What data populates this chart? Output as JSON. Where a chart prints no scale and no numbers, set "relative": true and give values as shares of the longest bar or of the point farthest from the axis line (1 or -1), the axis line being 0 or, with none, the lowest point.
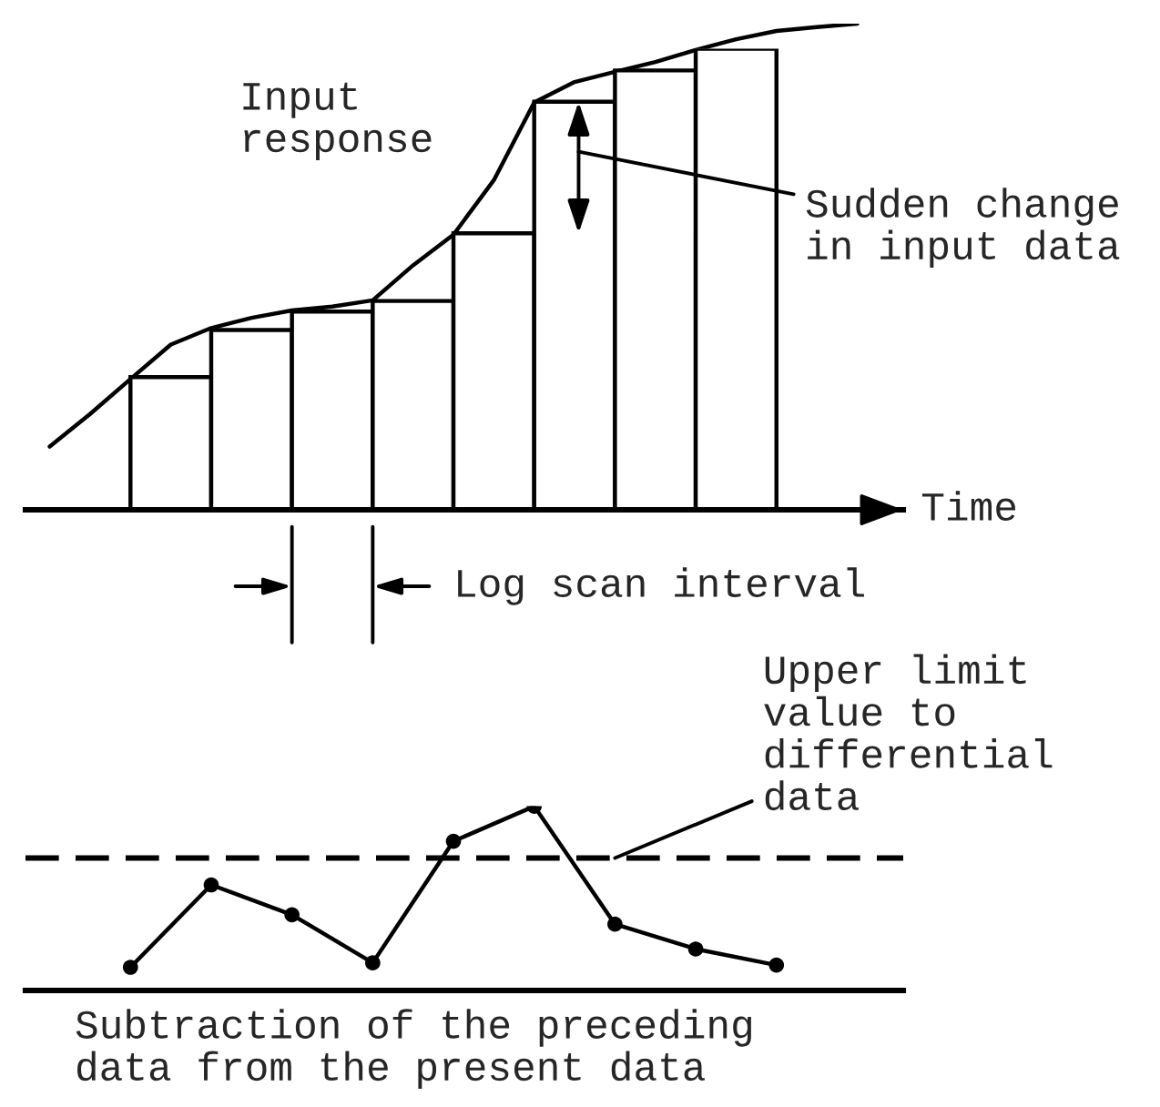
{
  "chart_data": [
    {
      "type": "bar",
      "relative": true,
      "xlabel": "Time",
      "tick_labels": false,
      "categories": [
        null,
        null,
        null,
        null,
        null,
        null,
        null,
        null
      ],
      "series": [
        {
          "color": "#ffffff",
          "values": [
            0.288,
            0.39,
            0.43,
            0.453,
            0.6,
            0.885,
            0.953,
            1.0
          ]
        }
      ],
      "annotations": [
        "Input\nresponse",
        "Sudden change\nin input data",
        "Log scan interval"
      ]
    },
    {
      "type": "line",
      "relative": true,
      "tick_labels": false,
      "categories": [
        null,
        null,
        null,
        null,
        null,
        null,
        null,
        null,
        null,
        null,
        null,
        null,
        null,
        null,
        null,
        null,
        null,
        null,
        null,
        null,
        null
      ],
      "series": [
        {
          "color": "#000000",
          "values": [
            0.13,
            0.197,
            0.269,
            0.34,
            0.374,
            0.395,
            0.41,
            0.418,
            0.431,
            0.503,
            0.566,
            0.678,
            0.838,
            0.88,
            0.901,
            0.921,
            0.946,
            0.968,
            0.985,
            0.993,
            1.0
          ]
        }
      ]
    },
    {
      "type": "line",
      "relative": true,
      "xlabel": "Subtraction of the preceding\ndata from the present data",
      "tick_labels": false,
      "marker": "circle",
      "categories": [
        null,
        null,
        null,
        null,
        null,
        null,
        null,
        null,
        null
      ],
      "series": [
        {
          "color": "#000000",
          "values": [
            0.126,
            0.573,
            0.411,
            0.15,
            0.81,
            1.0,
            0.36,
            0.225,
            0.138
          ]
        }
      ],
      "ref_lines": [
        {
          "axis": "y",
          "value": 0.719,
          "label": "Upper limit\nvalue to\ndifferential\ndata",
          "line_style": "dashed",
          "color": "#000000"
        }
      ]
    }
  ]
}
